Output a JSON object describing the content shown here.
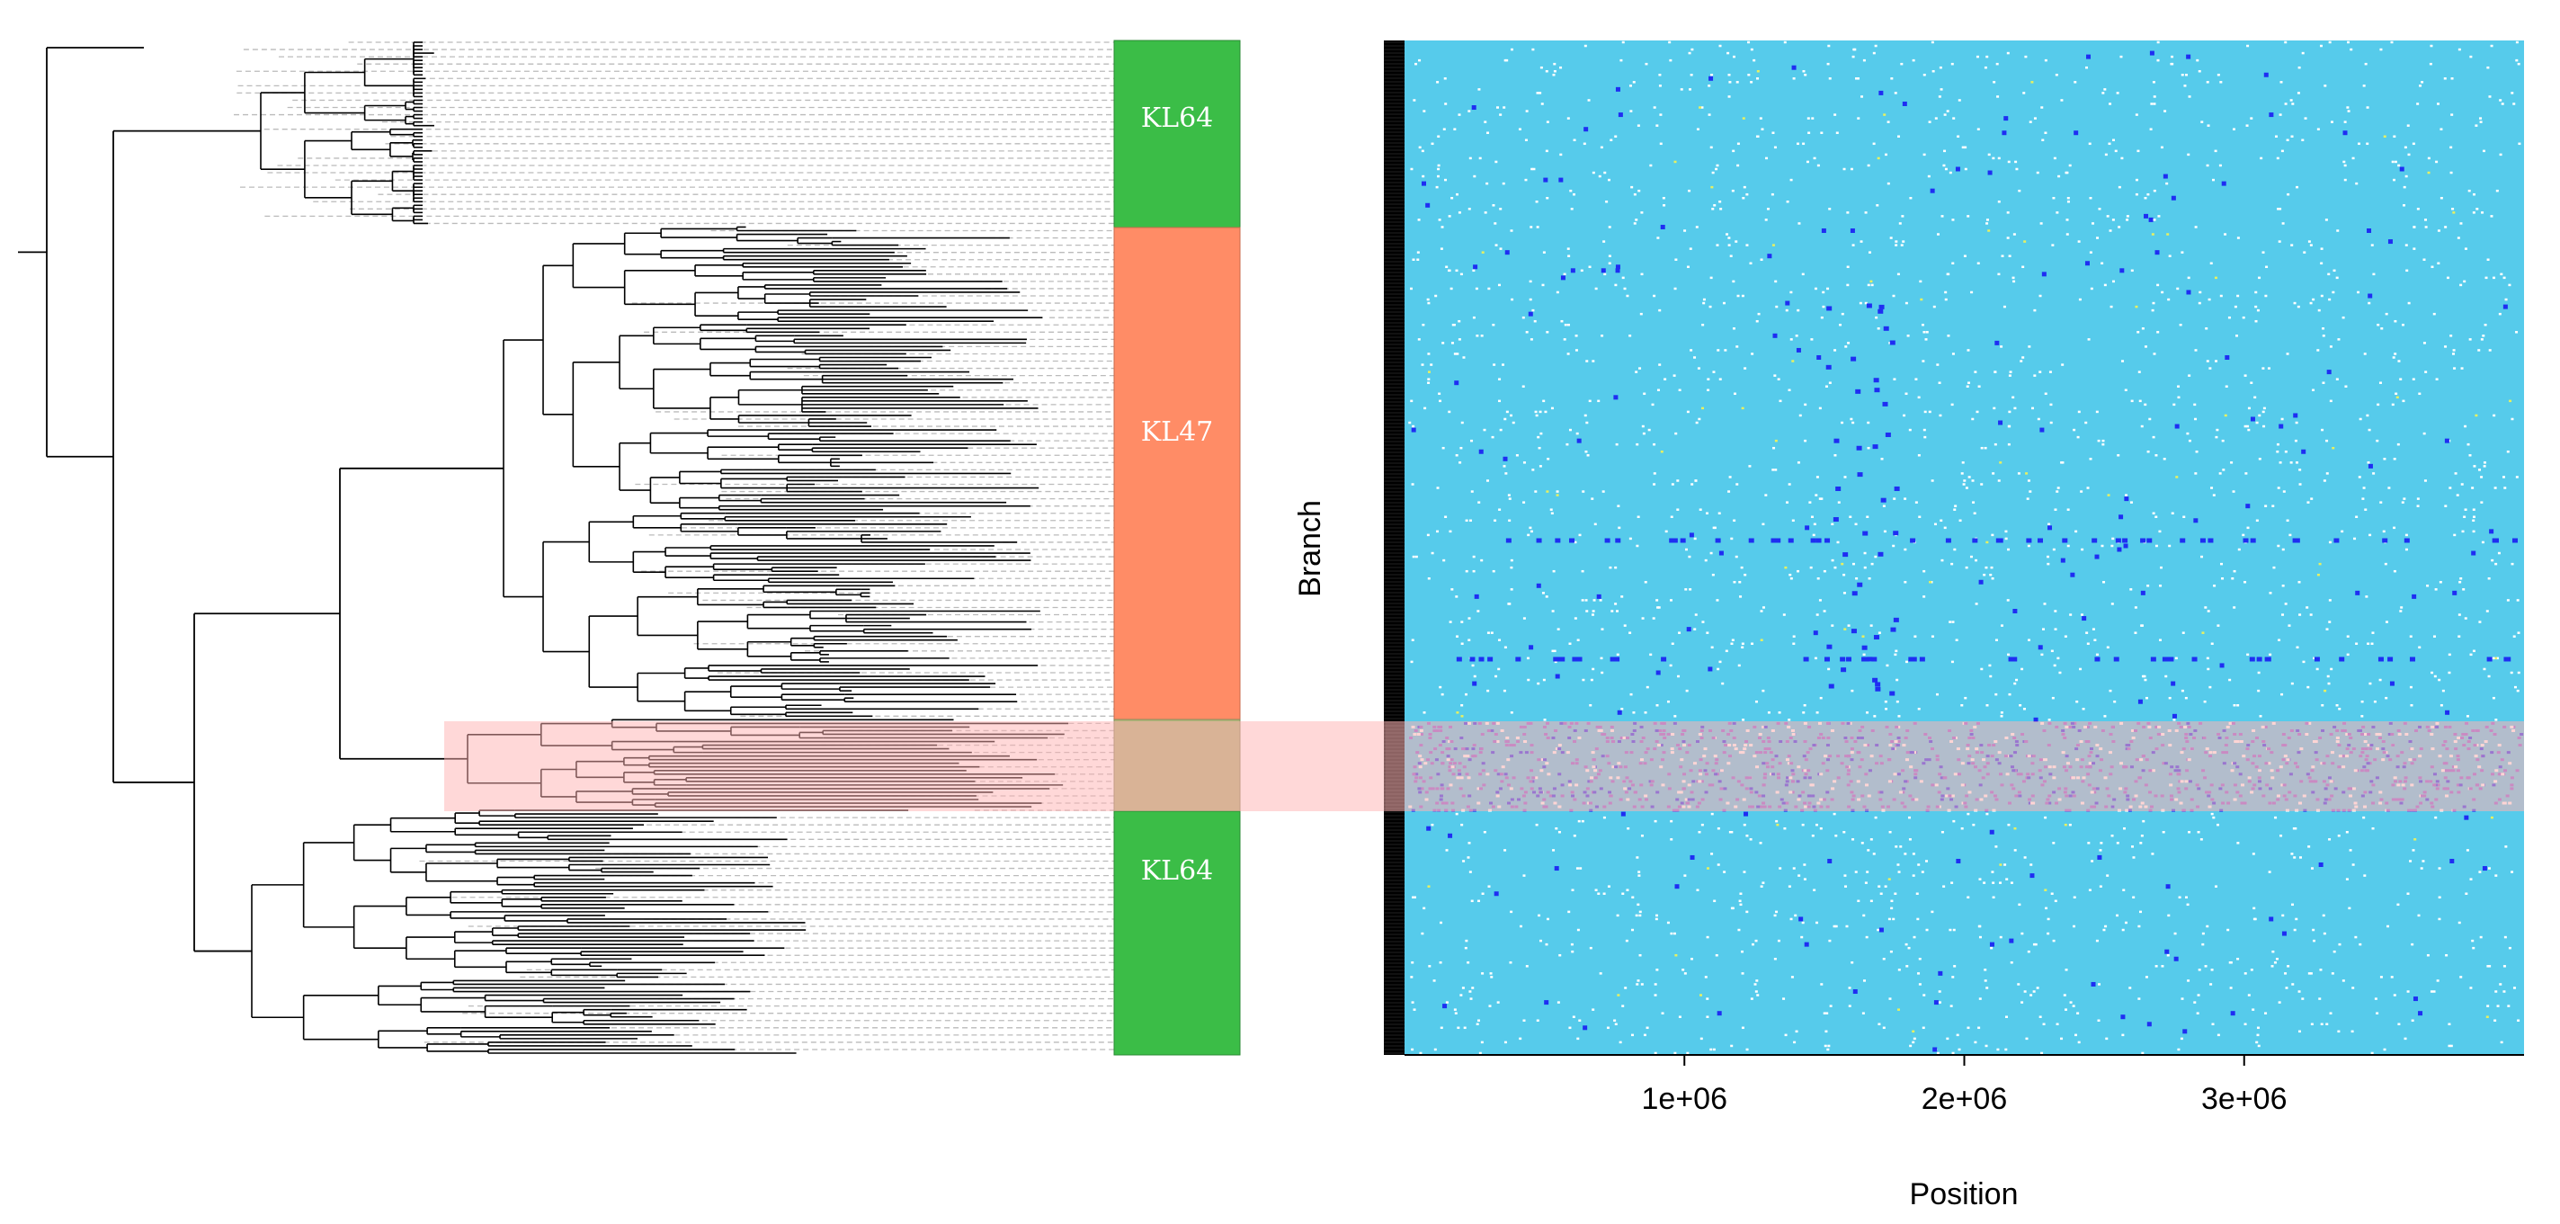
{
  "chart_data": {
    "type": "heatmap",
    "title": "",
    "xlabel": "Position",
    "ylabel": "Branch",
    "x_ticks": [
      "1e+06",
      "2e+06",
      "3e+06"
    ],
    "x_tick_values": [
      1000000,
      2000000,
      3000000
    ],
    "xlim": [
      0,
      4000000
    ],
    "clade_bars": [
      {
        "label": "KL64",
        "color": "#3bbd47"
      },
      {
        "label": "KL47",
        "color": "#ff8c66"
      },
      {
        "label": "",
        "color": "#b2b57a"
      },
      {
        "label": "KL64",
        "color": "#3bbd47"
      }
    ],
    "background_color": "#56cbeb",
    "event_colors": {
      "minor": "#ffffff",
      "recombination": "#1f2ef2",
      "highlight": "#8a5ad6",
      "rare": "#e8f060"
    },
    "highlight_color": "#ffb2b2",
    "tree_line_color": "#000000",
    "leader_line_color": "#bbbbbb"
  }
}
